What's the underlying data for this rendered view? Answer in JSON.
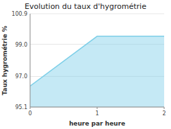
{
  "chart_data": {
    "type": "area",
    "title": "Evolution du taux d'hygrométrie",
    "xlabel": "heure par heure",
    "ylabel": "Taux hygrométrie %",
    "x": [
      0,
      1,
      2
    ],
    "values": [
      96.4,
      99.5,
      99.5
    ],
    "color": "#7ecfe8",
    "xlim": [
      0,
      2
    ],
    "ylim": [
      95.1,
      100.9
    ],
    "xticks": [
      0,
      1,
      2
    ],
    "yticks": [
      95.1,
      {
        "value": 97.0,
        "label": "97.0"
      },
      {
        "value": 99.0,
        "label": "99.0"
      },
      100.9
    ]
  }
}
